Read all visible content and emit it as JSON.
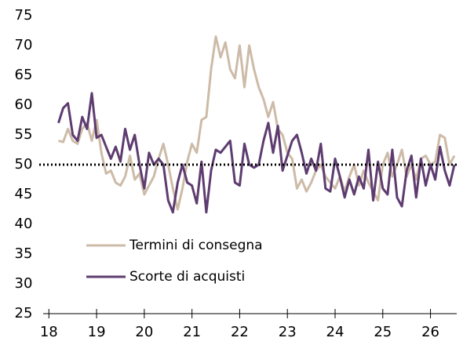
{
  "chart_data": {
    "type": "line",
    "x": [
      18.2,
      18.3,
      18.4,
      18.5,
      18.6,
      18.7,
      18.8,
      18.9,
      19.0,
      19.1,
      19.2,
      19.3,
      19.4,
      19.5,
      19.6,
      19.7,
      19.8,
      19.9,
      20.0,
      20.1,
      20.2,
      20.3,
      20.4,
      20.5,
      20.6,
      20.7,
      20.8,
      20.9,
      21.0,
      21.1,
      21.2,
      21.3,
      21.4,
      21.5,
      21.6,
      21.7,
      21.8,
      21.9,
      22.0,
      22.1,
      22.2,
      22.3,
      22.4,
      22.5,
      22.6,
      22.7,
      22.8,
      22.9,
      23.0,
      23.1,
      23.2,
      23.3,
      23.4,
      23.5,
      23.6,
      23.7,
      23.8,
      23.9,
      24.0,
      24.1,
      24.2,
      24.3,
      24.4,
      24.5,
      24.6,
      24.7,
      24.8,
      24.9,
      25.0,
      25.1,
      25.2,
      25.3,
      25.4,
      25.5,
      25.6,
      25.7,
      25.8,
      25.9,
      26.0,
      26.1,
      26.2,
      26.3,
      26.4,
      26.5
    ],
    "series": [
      {
        "name": "Termini di consegna",
        "color": "#cdbba8",
        "values": [
          54,
          53.8,
          56,
          54,
          53.5,
          56,
          57,
          54,
          57.5,
          52,
          48.5,
          49,
          47,
          46.5,
          48,
          51.5,
          47.5,
          48.5,
          45,
          46.5,
          48,
          51,
          53.5,
          50,
          46,
          42.5,
          46,
          50.5,
          53.5,
          52,
          57.5,
          58,
          66,
          71.5,
          68,
          70.5,
          66,
          64.5,
          70,
          63,
          70,
          66,
          63,
          61,
          58,
          60.5,
          56,
          55,
          52,
          51,
          46,
          47.5,
          45.5,
          47,
          49,
          50,
          48,
          47,
          46,
          48,
          45.5,
          48,
          50,
          46.5,
          49,
          47,
          45.5,
          44,
          50,
          52,
          48,
          50,
          52.5,
          48,
          50,
          47.5,
          51,
          51.5,
          50,
          50.5,
          55,
          54.5,
          50,
          51.5
        ]
      },
      {
        "name": "Scorte di acquisti",
        "color": "#5e3c70",
        "values": [
          57,
          59.5,
          60.3,
          55,
          54,
          58,
          56,
          62,
          54.5,
          55,
          53,
          51,
          53,
          50.5,
          56,
          52.5,
          55,
          50,
          46,
          52,
          50,
          51,
          50,
          44,
          42,
          47,
          50,
          47,
          46.5,
          43.5,
          50.5,
          42,
          49,
          52.5,
          52,
          53,
          54,
          47,
          46.5,
          53.5,
          50,
          49.5,
          50,
          54,
          57,
          52,
          56.5,
          49,
          51.5,
          54,
          55,
          52,
          48.5,
          51,
          49,
          53.5,
          46,
          45.5,
          51,
          48,
          44.5,
          47.5,
          45,
          48,
          46,
          52.5,
          44,
          50.5,
          46,
          45,
          52.5,
          44.5,
          43,
          49,
          51.5,
          44.5,
          51,
          46.5,
          50,
          47.5,
          53,
          49,
          46.5,
          50
        ]
      }
    ],
    "reference_line": 50,
    "xlim": [
      17.88,
      26.55
    ],
    "xticks": [
      18,
      19,
      20,
      21,
      22,
      23,
      24,
      25,
      26
    ],
    "ylim": [
      25,
      75
    ],
    "yticks": [
      25,
      30,
      35,
      40,
      45,
      50,
      55,
      60,
      65,
      70,
      75
    ],
    "grid": false
  }
}
